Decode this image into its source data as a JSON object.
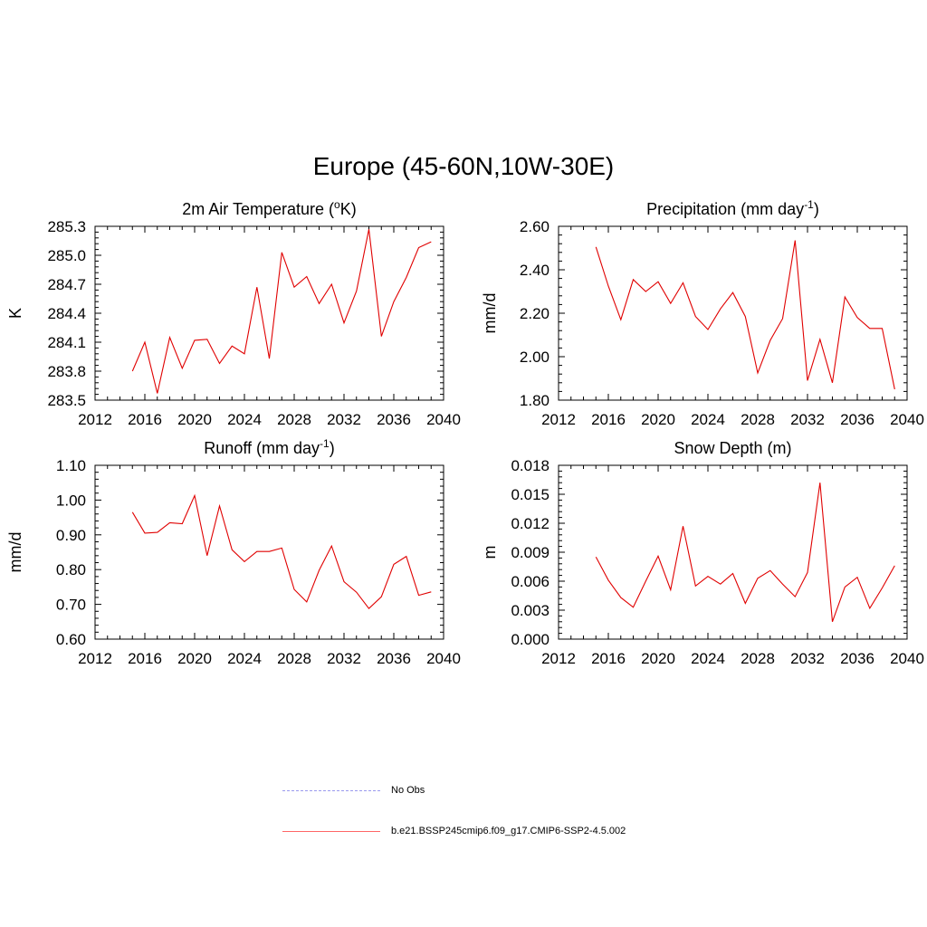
{
  "page_title": "Europe (45-60N,10W-30E)",
  "colors": {
    "series": "#e00000",
    "obs": "#9999ee",
    "axis": "#000000"
  },
  "legend": [
    {
      "label": "No Obs",
      "style": "dashed",
      "color": "#9999ee"
    },
    {
      "label": "b.e21.BSSP245cmip6.f09_g17.CMIP6-SSP2-4.5.002",
      "style": "solid",
      "color": "#ff6666"
    }
  ],
  "chart_data": [
    {
      "type": "line",
      "title": "2m Air Temperature (",
      "title_sup": "o",
      "title_after": "K)",
      "ylabel": "K",
      "xlim": [
        2012,
        2040
      ],
      "ylim": [
        283.5,
        285.3
      ],
      "xticks": [
        "2012",
        "2016",
        "2020",
        "2024",
        "2028",
        "2032",
        "2036",
        "2040"
      ],
      "yticks": [
        "283.5",
        "283.8",
        "284.1",
        "284.4",
        "284.7",
        "285.0",
        "285.3"
      ],
      "x": [
        2015,
        2016,
        2017,
        2018,
        2019,
        2020,
        2021,
        2022,
        2023,
        2024,
        2025,
        2026,
        2027,
        2028,
        2029,
        2030,
        2031,
        2032,
        2033,
        2034,
        2035,
        2036,
        2037,
        2038,
        2039
      ],
      "values": [
        283.8,
        284.1,
        283.57,
        284.15,
        283.83,
        284.12,
        284.13,
        283.88,
        284.06,
        283.98,
        284.67,
        283.93,
        285.03,
        284.67,
        284.78,
        284.5,
        284.7,
        284.3,
        284.63,
        285.27,
        284.16,
        284.52,
        284.77,
        285.08,
        285.14
      ]
    },
    {
      "type": "line",
      "title": "Precipitation (mm day",
      "title_sup": "-1",
      "title_after": ")",
      "ylabel": "mm/d",
      "xlim": [
        2012,
        2040
      ],
      "ylim": [
        1.8,
        2.6
      ],
      "xticks": [
        "2012",
        "2016",
        "2020",
        "2024",
        "2028",
        "2032",
        "2036",
        "2040"
      ],
      "yticks": [
        "1.80",
        "2.00",
        "2.20",
        "2.40",
        "2.60"
      ],
      "x": [
        2015,
        2016,
        2017,
        2018,
        2019,
        2020,
        2021,
        2022,
        2023,
        2024,
        2025,
        2026,
        2027,
        2028,
        2029,
        2030,
        2031,
        2032,
        2033,
        2034,
        2035,
        2036,
        2037,
        2038,
        2039
      ],
      "values": [
        2.505,
        2.325,
        2.17,
        2.355,
        2.3,
        2.345,
        2.245,
        2.34,
        2.185,
        2.125,
        2.22,
        2.295,
        2.185,
        1.925,
        2.075,
        2.175,
        2.535,
        1.89,
        2.08,
        1.88,
        2.275,
        2.18,
        2.13,
        2.13,
        1.85
      ]
    },
    {
      "type": "line",
      "title": "Runoff (mm day",
      "title_sup": "-1",
      "title_after": ")",
      "ylabel": "mm/d",
      "xlim": [
        2012,
        2040
      ],
      "ylim": [
        0.6,
        1.1
      ],
      "xticks": [
        "2012",
        "2016",
        "2020",
        "2024",
        "2028",
        "2032",
        "2036",
        "2040"
      ],
      "yticks": [
        "0.60",
        "0.70",
        "0.80",
        "0.90",
        "1.00",
        "1.10"
      ],
      "x": [
        2015,
        2016,
        2017,
        2018,
        2019,
        2020,
        2021,
        2022,
        2023,
        2024,
        2025,
        2026,
        2027,
        2028,
        2029,
        2030,
        2031,
        2032,
        2033,
        2034,
        2035,
        2036,
        2037,
        2038,
        2039
      ],
      "values": [
        0.965,
        0.905,
        0.907,
        0.935,
        0.932,
        1.013,
        0.84,
        0.983,
        0.857,
        0.823,
        0.852,
        0.852,
        0.862,
        0.743,
        0.707,
        0.798,
        0.868,
        0.765,
        0.735,
        0.688,
        0.722,
        0.815,
        0.838,
        0.726,
        0.736
      ]
    },
    {
      "type": "line",
      "title": "Snow Depth (m)",
      "title_sup": "",
      "title_after": "",
      "ylabel": "m",
      "xlim": [
        2012,
        2040
      ],
      "ylim": [
        0.0,
        0.018
      ],
      "xticks": [
        "2012",
        "2016",
        "2020",
        "2024",
        "2028",
        "2032",
        "2036",
        "2040"
      ],
      "yticks": [
        "0.000",
        "0.003",
        "0.006",
        "0.009",
        "0.012",
        "0.015",
        "0.018"
      ],
      "x": [
        2015,
        2016,
        2017,
        2018,
        2019,
        2020,
        2021,
        2022,
        2023,
        2024,
        2025,
        2026,
        2027,
        2028,
        2029,
        2030,
        2031,
        2032,
        2033,
        2034,
        2035,
        2036,
        2037,
        2038,
        2039
      ],
      "values": [
        0.0085,
        0.0061,
        0.0043,
        0.0033,
        0.006,
        0.0086,
        0.0051,
        0.0117,
        0.0055,
        0.0065,
        0.0057,
        0.0068,
        0.0037,
        0.0063,
        0.0071,
        0.0057,
        0.0044,
        0.0069,
        0.0162,
        0.0018,
        0.0054,
        0.0064,
        0.0032,
        0.0053,
        0.0076
      ]
    }
  ]
}
